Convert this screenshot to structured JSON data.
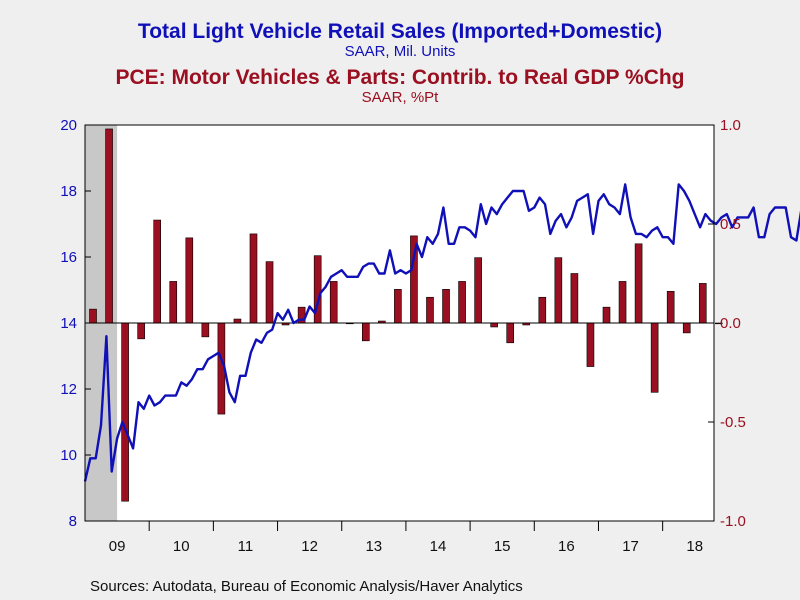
{
  "titles": {
    "line_title": "Total Light Vehicle Retail Sales (Imported+Domestic)",
    "line_subtitle": "SAAR, Mil. Units",
    "bar_title": "PCE: Motor Vehicles & Parts: Contrib. to Real GDP %Chg",
    "bar_subtitle": "SAAR, %Pt"
  },
  "source": "Sources:  Autodata, Bureau of Economic Analysis/Haver Analytics",
  "colors": {
    "line": "#1010b8",
    "bar": "#9a1020",
    "recession": "#c8c8c8",
    "background": "#efefef",
    "plot": "#ffffff"
  },
  "chart_data": {
    "type": "bar",
    "x_categories": [
      "09",
      "10",
      "11",
      "12",
      "13",
      "14",
      "15",
      "16",
      "17",
      "18"
    ],
    "x_range": [
      2009.0,
      2018.8
    ],
    "recession_shading": [
      2009.0,
      2009.5
    ],
    "left_axis": {
      "ylim": [
        8,
        20
      ],
      "ticks": [
        "8",
        "10",
        "12",
        "14",
        "16",
        "18",
        "20"
      ]
    },
    "right_axis": {
      "ylim": [
        -1.0,
        1.0
      ],
      "ticks": [
        "-1.0",
        "-0.5",
        "0.0",
        "0.5",
        "1.0"
      ]
    },
    "series": [
      {
        "kind": "bar",
        "axis": "right",
        "quarters": [
          "2009Q1",
          "2009Q2",
          "2009Q3",
          "2009Q4",
          "2010Q1",
          "2010Q2",
          "2010Q3",
          "2010Q4",
          "2011Q1",
          "2011Q2",
          "2011Q3",
          "2011Q4",
          "2012Q1",
          "2012Q2",
          "2012Q3",
          "2012Q4",
          "2013Q1",
          "2013Q2",
          "2013Q3",
          "2013Q4",
          "2014Q1",
          "2014Q2",
          "2014Q3",
          "2014Q4",
          "2015Q1",
          "2015Q2",
          "2015Q3",
          "2015Q4",
          "2016Q1",
          "2016Q2",
          "2016Q3",
          "2016Q4",
          "2017Q1",
          "2017Q2",
          "2017Q3",
          "2017Q4",
          "2018Q1",
          "2018Q2",
          "2018Q3",
          "2018Q4"
        ],
        "values": [
          0.07,
          0.98,
          -0.9,
          -0.08,
          0.52,
          0.21,
          0.43,
          -0.07,
          -0.46,
          0.02,
          0.45,
          0.31,
          -0.01,
          0.08,
          0.34,
          0.21,
          0.0,
          -0.09,
          0.01,
          0.17,
          0.44,
          0.13,
          0.17,
          0.21,
          0.33,
          -0.02,
          -0.1,
          -0.01,
          0.13,
          0.33,
          0.25,
          -0.22,
          0.08,
          0.21,
          0.4,
          -0.35,
          0.16,
          -0.05,
          0.2,
          0.0
        ]
      },
      {
        "kind": "line",
        "axis": "left",
        "monthly_values": [
          9.2,
          9.9,
          9.9,
          10.9,
          13.6,
          9.5,
          10.5,
          11.0,
          10.6,
          10.2,
          11.6,
          11.4,
          11.8,
          11.5,
          11.6,
          11.8,
          11.8,
          11.8,
          12.2,
          12.1,
          12.3,
          12.6,
          12.6,
          12.9,
          13.0,
          13.1,
          12.7,
          11.9,
          11.6,
          12.4,
          12.4,
          13.1,
          13.5,
          13.4,
          13.7,
          13.8,
          14.3,
          14.1,
          14.4,
          14.0,
          14.1,
          14.1,
          14.5,
          14.3,
          14.9,
          15.1,
          15.4,
          15.5,
          15.6,
          15.4,
          15.4,
          15.4,
          15.7,
          15.8,
          15.8,
          15.5,
          15.5,
          16.2,
          15.5,
          15.6,
          15.5,
          15.6,
          16.4,
          16.0,
          16.6,
          16.4,
          16.7,
          17.5,
          16.4,
          16.4,
          16.9,
          16.9,
          16.8,
          16.6,
          17.6,
          17.0,
          17.5,
          17.3,
          17.6,
          17.8,
          18.0,
          18.0,
          18.0,
          17.4,
          17.5,
          17.8,
          17.6,
          16.7,
          17.1,
          17.3,
          16.9,
          17.2,
          17.7,
          17.8,
          17.9,
          16.7,
          17.7,
          17.9,
          17.6,
          17.5,
          17.3,
          18.2,
          17.2,
          16.7,
          16.7,
          16.6,
          16.8,
          16.9,
          16.6,
          16.6,
          16.4,
          18.2,
          18.0,
          17.7,
          17.3,
          16.9,
          17.3,
          17.1,
          17.0,
          17.2,
          17.3,
          16.9,
          17.2,
          17.2,
          17.2,
          17.5,
          16.6,
          16.6,
          17.3,
          17.5,
          17.5,
          17.5,
          16.6,
          16.5,
          17.5
        ]
      }
    ]
  }
}
